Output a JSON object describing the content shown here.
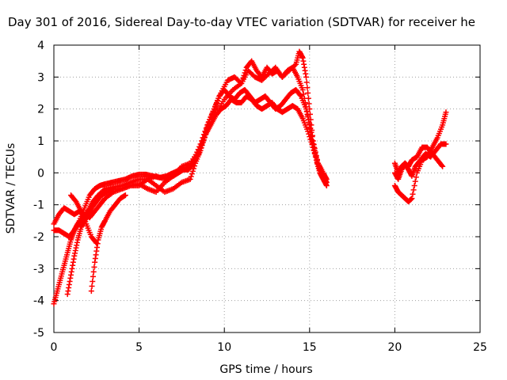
{
  "chart_data": {
    "type": "scatter",
    "title": "Day 301 of 2016, Sidereal Day-to-day VTEC variation (SDTVAR) for receiver he",
    "xlabel": "GPS time / hours",
    "ylabel": "SDTVAR / TECUs",
    "xlim": [
      0,
      25
    ],
    "ylim": [
      -5,
      4
    ],
    "xticks": [
      0,
      5,
      10,
      15,
      20,
      25
    ],
    "yticks": [
      -5,
      -4,
      -3,
      -2,
      -1,
      0,
      1,
      2,
      3,
      4
    ],
    "grid": true,
    "marker": "+",
    "color": "#ff0000",
    "series": [
      {
        "x": [
          0.0,
          0.3,
          0.6,
          0.9,
          1.2,
          1.5,
          1.8,
          2.1,
          2.4,
          2.7,
          3.0,
          3.5,
          4.0,
          4.5,
          5.0,
          5.5,
          6.0,
          6.5,
          7.0,
          7.3,
          7.6,
          7.9,
          8.2,
          8.5,
          8.8,
          9.1,
          9.4,
          9.7,
          10.0,
          10.3,
          10.6,
          10.9,
          11.2,
          11.5,
          11.8,
          12.1,
          12.4,
          12.7,
          13.0,
          13.3,
          13.6,
          13.9,
          14.2,
          14.5,
          14.8,
          15.0,
          15.2,
          15.5,
          15.8,
          16.0
        ],
        "y": [
          -1.6,
          -1.3,
          -1.1,
          -1.2,
          -1.3,
          -1.2,
          -1.3,
          -1.4,
          -1.2,
          -1.0,
          -0.8,
          -0.6,
          -0.5,
          -0.4,
          -0.35,
          -0.5,
          -0.6,
          -0.3,
          -0.1,
          0.0,
          0.1,
          0.1,
          0.3,
          0.6,
          1.1,
          1.6,
          2.0,
          2.4,
          2.6,
          2.4,
          2.3,
          2.5,
          2.6,
          2.4,
          2.2,
          2.3,
          2.4,
          2.2,
          2.0,
          2.1,
          2.3,
          2.5,
          2.6,
          2.4,
          2.0,
          1.5,
          0.8,
          0.2,
          -0.1,
          -0.3
        ]
      },
      {
        "x": [
          0.0,
          0.2,
          0.4,
          0.6,
          0.8,
          1.0,
          1.2,
          1.4,
          1.7,
          2.0,
          2.3,
          2.6,
          3.0,
          3.5,
          4.0,
          4.5,
          5.0,
          5.5,
          6.0,
          6.5,
          7.0,
          7.5,
          8.0,
          8.3,
          8.6,
          8.9,
          9.2,
          9.5,
          9.8,
          10.1,
          10.4,
          10.7,
          11.0,
          11.3,
          11.6,
          11.9,
          12.2,
          12.5,
          12.8,
          13.1,
          13.4,
          13.7,
          14.0,
          14.3,
          14.6,
          14.9,
          15.2,
          15.5,
          15.8,
          16.0
        ],
        "y": [
          -4.1,
          -3.7,
          -3.3,
          -2.9,
          -2.5,
          -2.1,
          -1.8,
          -1.6,
          -1.4,
          -1.2,
          -0.9,
          -0.7,
          -0.5,
          -0.45,
          -0.4,
          -0.3,
          -0.2,
          -0.2,
          -0.4,
          -0.6,
          -0.5,
          -0.3,
          -0.2,
          0.3,
          0.7,
          1.2,
          1.5,
          1.8,
          2.0,
          2.1,
          2.3,
          2.2,
          2.2,
          2.4,
          2.3,
          2.1,
          2.0,
          2.1,
          2.2,
          2.0,
          1.9,
          2.0,
          2.1,
          2.0,
          1.7,
          1.3,
          0.8,
          0.3,
          0.0,
          -0.2
        ]
      },
      {
        "x": [
          0.0,
          0.3,
          0.6,
          0.9,
          1.2,
          1.5,
          1.8,
          2.1,
          2.4,
          2.7,
          3.0,
          3.4,
          3.8,
          4.2,
          4.6,
          5.0,
          5.4,
          5.8,
          6.2,
          6.6,
          7.0,
          7.4,
          7.8,
          8.2,
          8.6,
          9.0,
          9.4,
          9.8,
          10.2,
          10.6,
          11.0,
          11.4,
          11.8,
          12.2,
          12.6,
          13.0,
          13.4,
          13.8,
          14.2,
          14.4,
          14.6,
          14.8,
          15.0,
          15.2,
          15.4,
          15.6,
          15.8,
          16.0
        ],
        "y": [
          -1.8,
          -1.8,
          -1.9,
          -2.0,
          -1.8,
          -1.5,
          -1.1,
          -0.7,
          -0.5,
          -0.4,
          -0.35,
          -0.3,
          -0.25,
          -0.2,
          -0.1,
          -0.05,
          -0.05,
          -0.1,
          -0.15,
          -0.1,
          0.0,
          0.1,
          0.1,
          0.4,
          0.9,
          1.5,
          2.0,
          2.5,
          2.9,
          3.0,
          2.8,
          3.2,
          3.0,
          2.9,
          3.1,
          3.3,
          3.0,
          3.2,
          3.4,
          3.8,
          3.6,
          3.0,
          2.0,
          1.0,
          0.4,
          0.0,
          -0.2,
          -0.4
        ]
      },
      {
        "x": [
          0.8,
          1.0,
          1.2,
          1.4,
          1.6,
          1.8,
          2.0,
          2.2,
          2.5,
          2.8,
          3.1,
          3.5,
          4.0,
          4.5,
          5.0,
          5.5,
          6.0,
          6.5,
          7.0,
          7.5,
          8.0,
          8.5,
          9.0,
          9.5,
          10.0,
          10.5,
          11.0,
          11.3,
          11.6,
          11.9,
          12.2,
          12.5,
          12.8,
          13.1,
          13.4,
          13.7,
          14.0,
          14.3,
          14.6,
          14.9,
          15.2,
          15.5,
          15.8
        ],
        "y": [
          -3.8,
          -3.2,
          -2.6,
          -2.1,
          -1.7,
          -1.5,
          -1.3,
          -1.1,
          -0.9,
          -0.7,
          -0.6,
          -0.5,
          -0.5,
          -0.4,
          -0.4,
          -0.2,
          -0.1,
          -0.2,
          -0.1,
          0.2,
          0.3,
          0.7,
          1.3,
          1.9,
          2.3,
          2.6,
          2.8,
          3.3,
          3.5,
          3.2,
          3.0,
          3.3,
          3.1,
          3.2,
          3.0,
          3.2,
          3.3,
          3.0,
          2.6,
          1.8,
          1.0,
          0.3,
          -0.1
        ]
      },
      {
        "x": [
          2.2,
          2.4,
          2.6,
          2.8,
          3.0,
          3.3,
          3.6,
          3.9,
          4.2
        ],
        "y": [
          -3.7,
          -2.8,
          -2.1,
          -1.7,
          -1.5,
          -1.2,
          -1.0,
          -0.8,
          -0.7
        ]
      },
      {
        "x": [
          1.0,
          1.3,
          1.6,
          1.9,
          2.2,
          2.5
        ],
        "y": [
          -0.7,
          -0.9,
          -1.2,
          -1.6,
          -2.0,
          -2.2
        ]
      },
      {
        "x": [
          20.0,
          20.2,
          20.4,
          20.6,
          20.8,
          21.0,
          21.2,
          21.5,
          21.8,
          22.1,
          22.4,
          22.7,
          23.0
        ],
        "y": [
          0.3,
          0.0,
          0.2,
          0.3,
          0.1,
          -0.1,
          0.2,
          0.4,
          0.6,
          0.5,
          0.7,
          0.9,
          0.9
        ]
      },
      {
        "x": [
          20.0,
          20.2,
          20.4,
          20.6,
          20.8,
          21.0,
          21.3,
          21.6,
          21.9,
          22.2,
          22.5,
          22.8,
          23.0
        ],
        "y": [
          -0.4,
          -0.6,
          -0.7,
          -0.8,
          -0.9,
          -0.8,
          0.0,
          0.4,
          0.5,
          0.8,
          1.1,
          1.5,
          1.9
        ]
      },
      {
        "x": [
          20.0,
          20.2,
          20.4,
          20.6,
          20.8,
          21.0,
          21.3,
          21.6,
          21.9,
          22.2,
          22.5,
          22.8
        ],
        "y": [
          0.0,
          -0.2,
          0.1,
          0.3,
          0.2,
          0.4,
          0.5,
          0.8,
          0.8,
          0.6,
          0.4,
          0.2
        ]
      }
    ]
  }
}
